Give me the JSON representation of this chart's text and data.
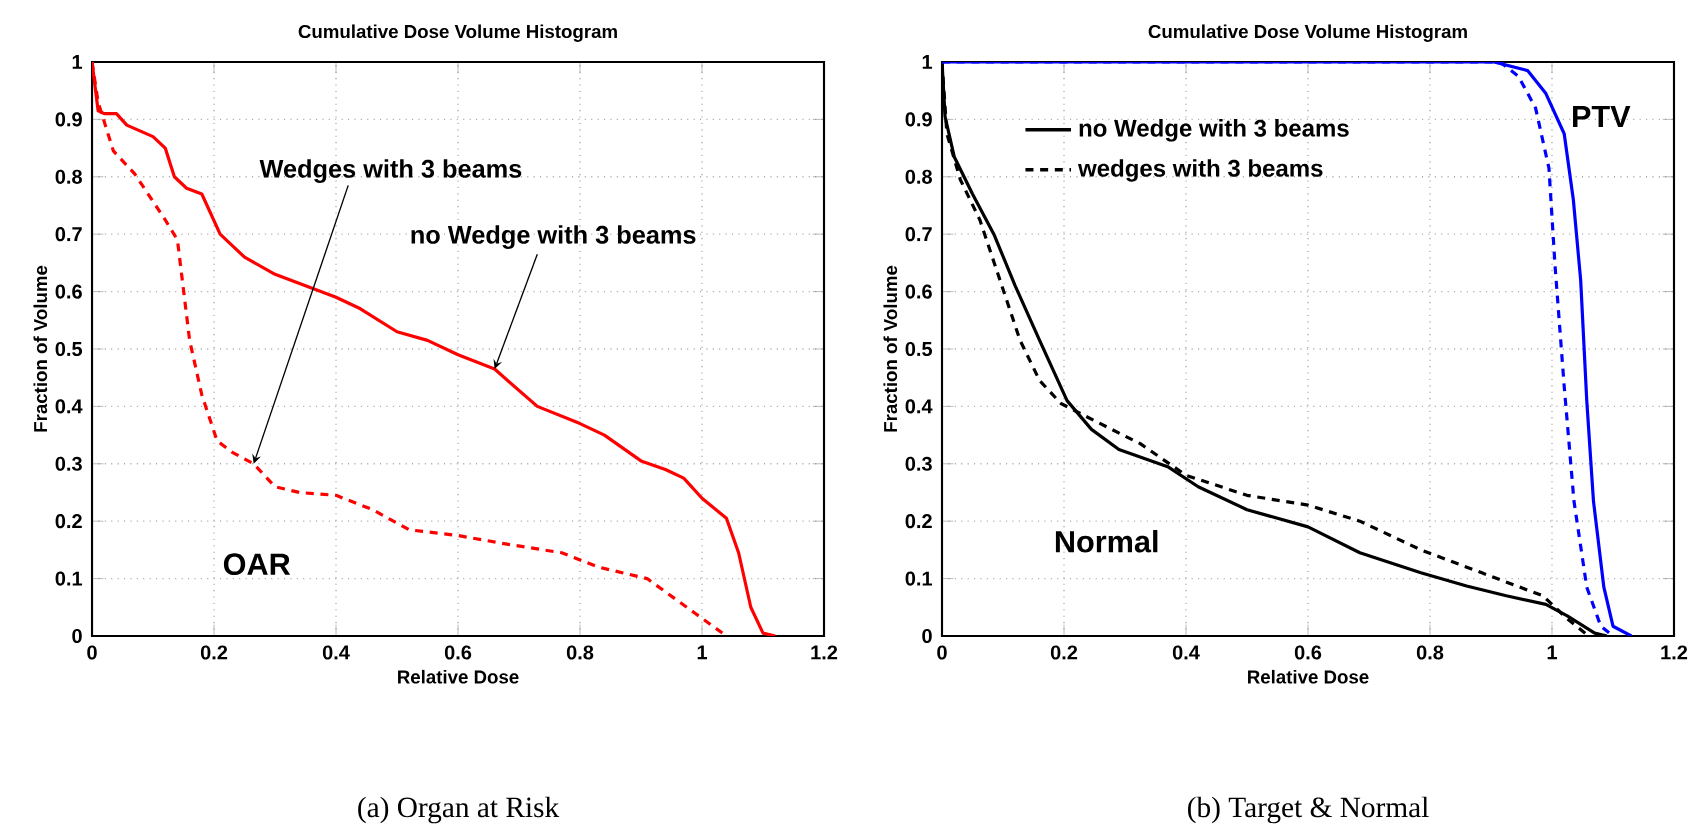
{
  "chart_data": [
    {
      "type": "line",
      "title": "Cumulative Dose Volume Histogram",
      "xlabel": "Relative Dose",
      "ylabel": "Fraction of Volume",
      "xlim": [
        0,
        1.2
      ],
      "ylim": [
        0,
        1
      ],
      "xticks": [
        0,
        0.2,
        0.4,
        0.6,
        0.8,
        1,
        1.2
      ],
      "yticks": [
        0,
        0.1,
        0.2,
        0.3,
        0.4,
        0.5,
        0.6,
        0.7,
        0.8,
        0.9,
        1
      ],
      "grid": true,
      "marker": "none",
      "legend": false,
      "series": [
        {
          "color": "#ff0000",
          "line_style": "solid",
          "x": [
            0,
            0.01,
            0.02,
            0.04,
            0.057,
            0.1,
            0.12,
            0.135,
            0.155,
            0.18,
            0.21,
            0.25,
            0.3,
            0.35,
            0.4,
            0.44,
            0.5,
            0.55,
            0.6,
            0.66,
            0.73,
            0.8,
            0.84,
            0.9,
            0.94,
            0.97,
            1.0,
            1.04,
            1.06,
            1.08,
            1.1,
            1.12
          ],
          "values": [
            1,
            0.915,
            0.91,
            0.91,
            0.89,
            0.87,
            0.85,
            0.8,
            0.78,
            0.77,
            0.7,
            0.66,
            0.63,
            0.61,
            0.59,
            0.57,
            0.53,
            0.515,
            0.49,
            0.465,
            0.4,
            0.37,
            0.35,
            0.305,
            0.29,
            0.275,
            0.24,
            0.205,
            0.145,
            0.05,
            0.005,
            0
          ]
        },
        {
          "color": "#ff0000",
          "line_style": "dashed",
          "x": [
            0,
            0.01,
            0.035,
            0.07,
            0.12,
            0.14,
            0.16,
            0.18,
            0.205,
            0.23,
            0.265,
            0.3,
            0.34,
            0.4,
            0.46,
            0.52,
            0.6,
            0.68,
            0.77,
            0.83,
            0.91,
            0.988,
            1.04
          ],
          "values": [
            1,
            0.93,
            0.845,
            0.805,
            0.725,
            0.69,
            0.515,
            0.42,
            0.34,
            0.32,
            0.3,
            0.26,
            0.25,
            0.245,
            0.22,
            0.185,
            0.175,
            0.16,
            0.145,
            0.12,
            0.1,
            0.04,
            0
          ]
        }
      ],
      "annotations": [
        {
          "text": "Wedges with 3 beams",
          "x": 0.265,
          "y": 0.3
        },
        {
          "text": "no Wedge with 3 beams",
          "x": 0.66,
          "y": 0.465
        },
        "OAR",
        "(a) Organ at Risk"
      ]
    },
    {
      "type": "line",
      "title": "Cumulative Dose Volume Histogram",
      "xlabel": "Relative Dose",
      "ylabel": "Fraction of Volume",
      "xlim": [
        0,
        1.2
      ],
      "ylim": [
        0,
        1
      ],
      "xticks": [
        0,
        0.2,
        0.4,
        0.6,
        0.8,
        1,
        1.2
      ],
      "yticks": [
        0,
        0.1,
        0.2,
        0.3,
        0.4,
        0.5,
        0.6,
        0.7,
        0.8,
        0.9,
        1
      ],
      "grid": true,
      "marker": "none",
      "legend": "top left",
      "series": [
        {
          "name": "no Wedge with 3 beams",
          "color": "#000000",
          "line_style": "solid",
          "x": [
            0,
            0.005,
            0.02,
            0.05,
            0.085,
            0.12,
            0.16,
            0.205,
            0.245,
            0.29,
            0.37,
            0.42,
            0.5,
            0.6,
            0.685,
            0.785,
            0.86,
            0.925,
            0.99,
            1.025,
            1.07,
            1.09
          ],
          "values": [
            1,
            0.905,
            0.835,
            0.77,
            0.7,
            0.61,
            0.515,
            0.41,
            0.36,
            0.325,
            0.295,
            0.26,
            0.22,
            0.19,
            0.145,
            0.11,
            0.087,
            0.07,
            0.055,
            0.035,
            0.005,
            0
          ]
        },
        {
          "name": "wedges with 3 beams",
          "color": "#000000",
          "line_style": "dashed",
          "x": [
            0,
            0.008,
            0.03,
            0.062,
            0.095,
            0.128,
            0.16,
            0.195,
            0.25,
            0.325,
            0.4,
            0.5,
            0.6,
            0.685,
            0.785,
            0.885,
            0.985,
            1.025,
            1.06
          ],
          "values": [
            1,
            0.875,
            0.795,
            0.725,
            0.62,
            0.515,
            0.445,
            0.405,
            0.375,
            0.335,
            0.28,
            0.245,
            0.228,
            0.2,
            0.15,
            0.11,
            0.07,
            0.03,
            0
          ]
        },
        {
          "color": "#0000ff",
          "line_style": "solid",
          "x": [
            0,
            0.905,
            0.96,
            0.99,
            1.02,
            1.035,
            1.047,
            1.057,
            1.068,
            1.085,
            1.1,
            1.13
          ],
          "values": [
            1,
            1,
            0.985,
            0.945,
            0.875,
            0.76,
            0.62,
            0.41,
            0.235,
            0.085,
            0.017,
            0
          ]
        },
        {
          "color": "#0000ff",
          "line_style": "dashed",
          "x": [
            0,
            0.915,
            0.945,
            0.973,
            0.995,
            1.005,
            1.02,
            1.036,
            1.057,
            1.08,
            1.1
          ],
          "values": [
            1,
            1,
            0.975,
            0.92,
            0.815,
            0.645,
            0.435,
            0.235,
            0.085,
            0.017,
            0
          ]
        }
      ],
      "annotations": [
        "PTV",
        "Normal",
        "(b) Target & Normal"
      ]
    }
  ]
}
